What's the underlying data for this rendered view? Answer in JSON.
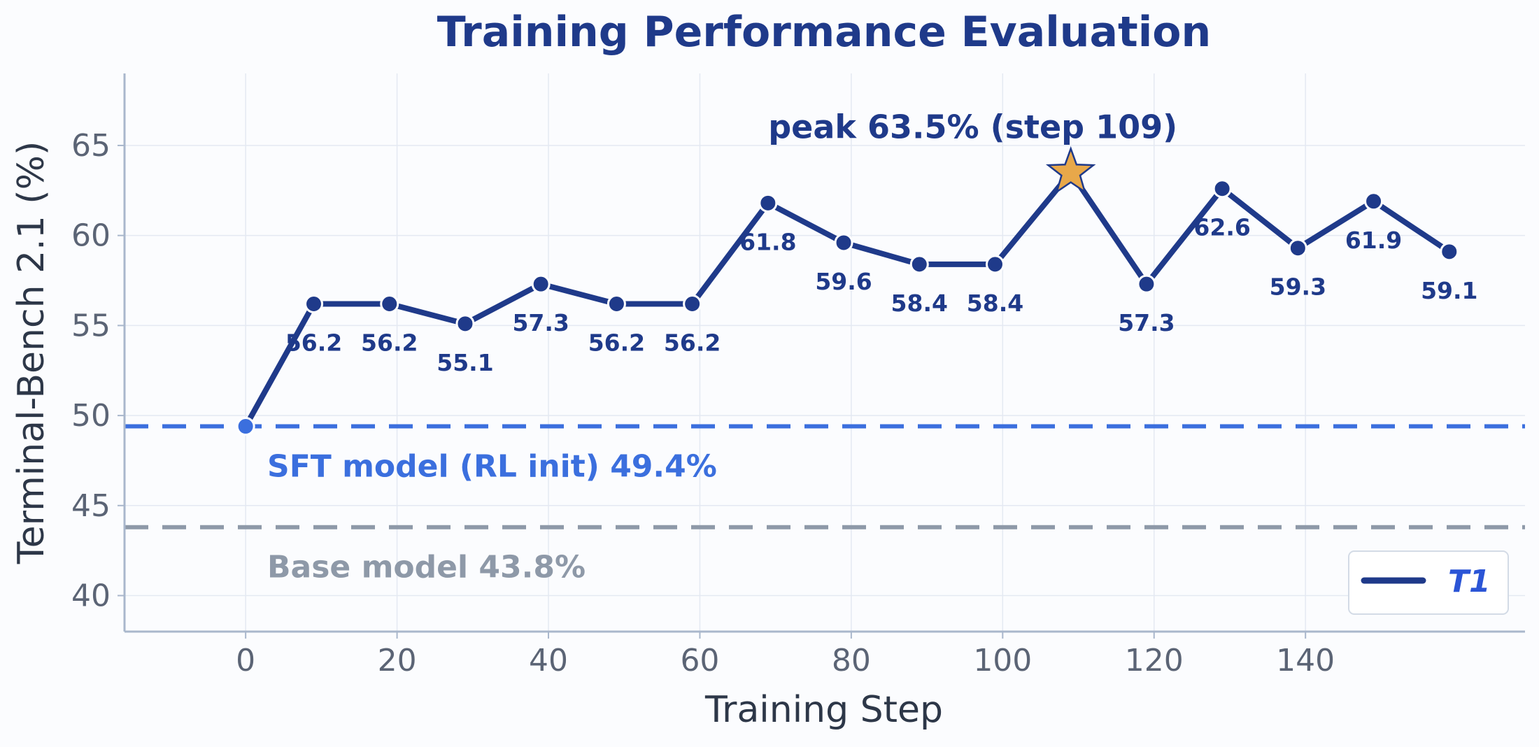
{
  "chart_data": {
    "type": "line",
    "title": "Training Performance Evaluation",
    "xlabel": "Training Step",
    "ylabel": "Terminal-Bench 2.1 (%)",
    "xlim": [
      -16,
      169
    ],
    "ylim": [
      38,
      69
    ],
    "x_ticks": [
      0,
      20,
      40,
      60,
      80,
      100,
      120,
      140
    ],
    "y_ticks": [
      40,
      45,
      50,
      55,
      60,
      65
    ],
    "grid": true,
    "legend": {
      "position": "bottom-right",
      "entries": [
        "T1"
      ]
    },
    "series": [
      {
        "name": "T1",
        "color": "#1f3a8a",
        "x": [
          0,
          9,
          19,
          29,
          39,
          49,
          59,
          69,
          79,
          89,
          99,
          109,
          119,
          129,
          139,
          149,
          159
        ],
        "y": [
          49.4,
          56.2,
          56.2,
          55.1,
          57.3,
          56.2,
          56.2,
          61.8,
          59.6,
          58.4,
          58.4,
          63.5,
          57.3,
          62.6,
          59.3,
          61.9,
          59.1
        ],
        "labels": [
          "",
          "56.2",
          "56.2",
          "55.1",
          "57.3",
          "56.2",
          "56.2",
          "61.8",
          "59.6",
          "58.4",
          "58.4",
          "",
          "57.3",
          "62.6",
          "59.3",
          "61.9",
          "59.1"
        ]
      }
    ],
    "reference_lines": [
      {
        "value": 49.4,
        "label": "SFT model (RL init)  49.4%",
        "color": "#3b6fde"
      },
      {
        "value": 43.8,
        "label": "Base model  43.8%",
        "color": "#8e99a8"
      }
    ],
    "peak": {
      "x": 109,
      "y": 63.5,
      "label": "peak 63.5%  (step 109)",
      "marker_color": "#e8a84a"
    }
  }
}
